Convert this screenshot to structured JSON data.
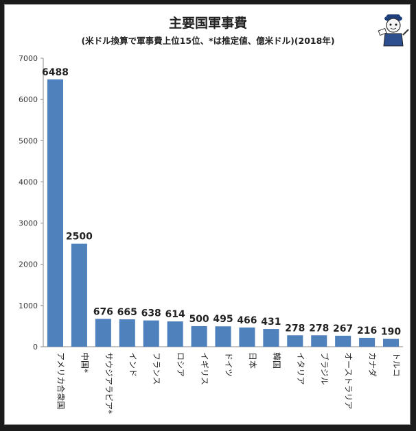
{
  "chart_data": {
    "type": "bar",
    "title": "主要国軍事費",
    "subtitle": "(米ドル換算で軍事費上位15位、*は推定値、億米ドル)(2018年)",
    "categories": [
      "アメリカ合衆国",
      "中国*",
      "サウジアラビア*",
      "インド",
      "フランス",
      "ロシア",
      "イギリス",
      "ドイツ",
      "日本",
      "韓国",
      "イタリア",
      "ブラジル",
      "オーストラリア",
      "カナダ",
      "トルコ"
    ],
    "values": [
      6488,
      2500,
      676,
      665,
      638,
      614,
      500,
      495,
      466,
      431,
      278,
      278,
      267,
      216,
      190
    ],
    "ylim": [
      0,
      7000
    ],
    "yticks": [
      0,
      1000,
      2000,
      3000,
      4000,
      5000,
      6000,
      7000
    ],
    "grid": false,
    "bar_color": "#4f81bd",
    "xlabel": "",
    "ylabel": ""
  }
}
